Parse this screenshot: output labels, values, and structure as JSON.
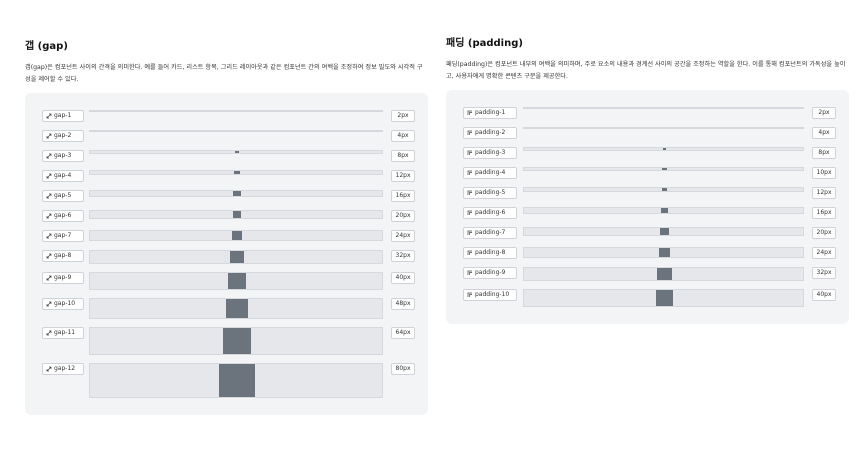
{
  "sections": [
    {
      "title": "갭 (gap)",
      "description": "갭(gap)은 컴포넌트 사이의 간격을 의미한다. 예를 들어 카드, 리스트 항목, 그리드 레이아웃과 같은 컴포넌트 간의 여백을 조정하여 정보 밀도와 시각적 구성을 제어할 수 있다.",
      "items": [
        {
          "name": "gap-1",
          "value": "2px"
        },
        {
          "name": "gap-2",
          "value": "4px"
        },
        {
          "name": "gap-3",
          "value": "8px"
        },
        {
          "name": "gap-4",
          "value": "12px"
        },
        {
          "name": "gap-5",
          "value": "16px"
        },
        {
          "name": "gap-6",
          "value": "20px"
        },
        {
          "name": "gap-7",
          "value": "24px"
        },
        {
          "name": "gap-8",
          "value": "32px"
        },
        {
          "name": "gap-9",
          "value": "40px"
        },
        {
          "name": "gap-10",
          "value": "48px"
        },
        {
          "name": "gap-11",
          "value": "64px"
        },
        {
          "name": "gap-12",
          "value": "80px"
        }
      ]
    },
    {
      "title": "패딩 (padding)",
      "description": "패딩(padding)은 컴포넌트 내부의 여백을 의미하며, 주로 요소의 내용과 경계선 사이의 공간을 조정하는 역할을 한다. 이를 통해 컴포넌트의 가독성을 높이고, 사용자에게 명확한 콘텐츠 구분을 제공한다.",
      "items": [
        {
          "name": "padding-1",
          "value": "2px"
        },
        {
          "name": "padding-2",
          "value": "4px"
        },
        {
          "name": "padding-3",
          "value": "8px"
        },
        {
          "name": "padding-4",
          "value": "10px"
        },
        {
          "name": "padding-5",
          "value": "12px"
        },
        {
          "name": "padding-6",
          "value": "16px"
        },
        {
          "name": "padding-7",
          "value": "20px"
        },
        {
          "name": "padding-8",
          "value": "24px"
        },
        {
          "name": "padding-9",
          "value": "32px"
        },
        {
          "name": "padding-10",
          "value": "40px"
        }
      ]
    }
  ]
}
